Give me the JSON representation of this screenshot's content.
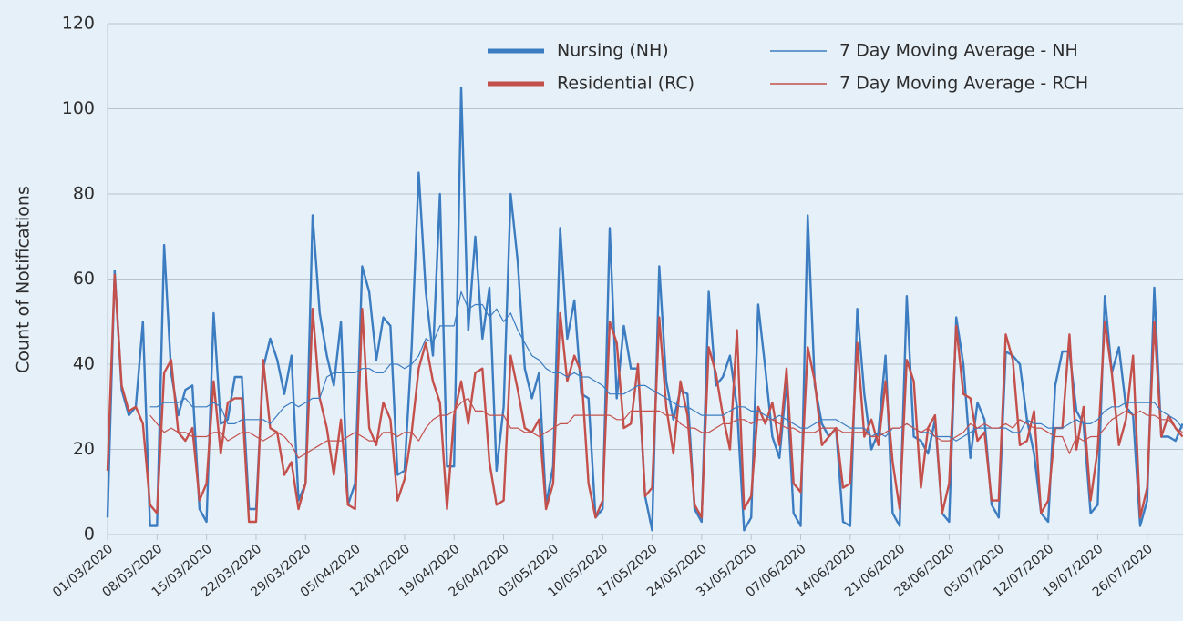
{
  "chart_data": {
    "type": "line",
    "y_label": "Count of Notifications",
    "categories": [
      "01/03/2020",
      null,
      null,
      null,
      null,
      null,
      null,
      "08/03/2020",
      null,
      null,
      null,
      null,
      null,
      null,
      "15/03/2020",
      null,
      null,
      null,
      null,
      null,
      null,
      "22/03/2020",
      null,
      null,
      null,
      null,
      null,
      null,
      "29/03/2020",
      null,
      null,
      null,
      null,
      null,
      null,
      "05/04/2020",
      null,
      null,
      null,
      null,
      null,
      null,
      "12/04/2020",
      null,
      null,
      null,
      null,
      null,
      null,
      "19/04/2020",
      null,
      null,
      null,
      null,
      null,
      null,
      "26/04/2020",
      null,
      null,
      null,
      null,
      null,
      null,
      "03/05/2020",
      null,
      null,
      null,
      null,
      null,
      null,
      "10/05/2020",
      null,
      null,
      null,
      null,
      null,
      null,
      "17/05/2020",
      null,
      null,
      null,
      null,
      null,
      null,
      "24/05/2020",
      null,
      null,
      null,
      null,
      null,
      null,
      "31/05/2020",
      null,
      null,
      null,
      null,
      null,
      null,
      "07/06/2020",
      null,
      null,
      null,
      null,
      null,
      null,
      "14/06/2020",
      null,
      null,
      null,
      null,
      null,
      null,
      "21/06/2020",
      null,
      null,
      null,
      null,
      null,
      null,
      "28/06/2020",
      null,
      null,
      null,
      null,
      null,
      null,
      "05/07/2020",
      null,
      null,
      null,
      null,
      null,
      null,
      "12/07/2020",
      null,
      null,
      null,
      null,
      null,
      null,
      "19/07/2020",
      null,
      null,
      null,
      null,
      null,
      null,
      "26/07/2020",
      null,
      null,
      null,
      null,
      null
    ],
    "ylim": [
      0,
      120
    ],
    "yticks": [
      0,
      20,
      40,
      60,
      80,
      100,
      120
    ],
    "grid": true,
    "legend": "top-right",
    "series": [
      {
        "name": "Nursing (NH)",
        "color": "#3c7cc0",
        "values": [
          4,
          62,
          34,
          28,
          30,
          50,
          2,
          2,
          68,
          38,
          28,
          34,
          35,
          6,
          3,
          52,
          26,
          27,
          37,
          37,
          6,
          6,
          39,
          46,
          41,
          33,
          42,
          8,
          12,
          75,
          52,
          42,
          35,
          50,
          7,
          12,
          63,
          57,
          41,
          51,
          49,
          14,
          15,
          44,
          85,
          57,
          42,
          80,
          16,
          16,
          105,
          48,
          70,
          46,
          58,
          15,
          30,
          80,
          64,
          39,
          32,
          38,
          7,
          16,
          72,
          46,
          55,
          33,
          32,
          4,
          6,
          72,
          32,
          49,
          39,
          39,
          9,
          1,
          63,
          36,
          27,
          34,
          33,
          6,
          3,
          57,
          35,
          37,
          42,
          30,
          1,
          4,
          54,
          39,
          23,
          18,
          36,
          5,
          2,
          75,
          35,
          26,
          23,
          25,
          3,
          2,
          53,
          33,
          20,
          24,
          42,
          5,
          2,
          56,
          23,
          22,
          19,
          27,
          5,
          3,
          51,
          40,
          18,
          31,
          27,
          7,
          4,
          43,
          42,
          40,
          27,
          19,
          5,
          3,
          35,
          43,
          43,
          29,
          26,
          5,
          7,
          56,
          38,
          44,
          30,
          28,
          2,
          8,
          58,
          23,
          23,
          22,
          26
        ]
      },
      {
        "name": "Residential (RC)",
        "color": "#c4504c",
        "values": [
          15,
          61,
          35,
          29,
          30,
          26,
          7,
          5,
          38,
          41,
          24,
          22,
          25,
          8,
          12,
          36,
          19,
          31,
          32,
          32,
          3,
          3,
          41,
          25,
          24,
          14,
          17,
          6,
          12,
          53,
          32,
          25,
          14,
          27,
          7,
          6,
          53,
          25,
          21,
          31,
          27,
          8,
          13,
          24,
          39,
          45,
          36,
          31,
          6,
          28,
          36,
          26,
          38,
          39,
          17,
          7,
          8,
          42,
          34,
          25,
          24,
          27,
          6,
          12,
          52,
          36,
          42,
          38,
          12,
          4,
          8,
          50,
          45,
          25,
          26,
          40,
          9,
          11,
          51,
          30,
          19,
          36,
          28,
          7,
          4,
          44,
          38,
          28,
          20,
          48,
          6,
          9,
          30,
          26,
          31,
          21,
          39,
          12,
          10,
          44,
          36,
          21,
          23,
          25,
          11,
          12,
          45,
          23,
          27,
          21,
          36,
          17,
          6,
          41,
          36,
          11,
          25,
          28,
          5,
          12,
          49,
          33,
          32,
          22,
          24,
          8,
          8,
          47,
          41,
          21,
          22,
          29,
          5,
          8,
          25,
          25,
          47,
          20,
          30,
          8,
          20,
          50,
          38,
          21,
          27,
          42,
          4,
          11,
          50,
          23,
          28,
          25,
          23
        ]
      },
      {
        "name": "7 Day Moving Average - NH",
        "color": "#3c7cc0",
        "values": [
          null,
          null,
          null,
          null,
          null,
          null,
          30,
          30,
          31,
          31,
          31,
          32,
          30,
          30,
          30,
          31,
          30,
          26,
          26,
          27,
          27,
          27,
          27,
          26,
          28,
          30,
          31,
          30,
          31,
          32,
          32,
          37,
          38,
          38,
          38,
          38,
          39,
          39,
          38,
          38,
          40,
          40,
          39,
          40,
          42,
          46,
          45,
          49,
          49,
          49,
          57,
          53,
          54,
          54,
          51,
          53,
          50,
          52,
          48,
          45,
          42,
          41,
          39,
          38,
          38,
          37,
          38,
          37,
          37,
          36,
          35,
          33,
          33,
          33,
          34,
          35,
          35,
          34,
          33,
          32,
          31,
          30,
          30,
          29,
          28,
          28,
          28,
          28,
          29,
          30,
          30,
          29,
          29,
          28,
          27,
          28,
          27,
          26,
          25,
          25,
          26,
          27,
          27,
          27,
          26,
          25,
          25,
          25,
          23,
          24,
          23,
          25,
          25,
          26,
          25,
          24,
          24,
          23,
          23,
          23,
          22,
          23,
          24,
          25,
          25,
          25,
          25,
          25,
          24,
          24,
          27,
          26,
          26,
          25,
          25,
          25,
          26,
          27,
          26,
          26,
          27,
          29,
          30,
          30,
          31,
          31,
          31,
          31,
          31,
          29,
          28,
          27,
          25
        ]
      },
      {
        "name": "7 Day Moving Average - RCH",
        "color": "#c4504c",
        "values": [
          null,
          null,
          null,
          null,
          null,
          null,
          28,
          26,
          24,
          25,
          24,
          24,
          23,
          23,
          23,
          24,
          24,
          22,
          23,
          24,
          24,
          23,
          22,
          23,
          24,
          23,
          21,
          18,
          19,
          20,
          21,
          22,
          22,
          22,
          23,
          24,
          23,
          22,
          22,
          24,
          24,
          23,
          24,
          24,
          22,
          25,
          27,
          28,
          28,
          29,
          31,
          32,
          29,
          29,
          28,
          28,
          28,
          25,
          25,
          24,
          24,
          23,
          24,
          25,
          26,
          26,
          28,
          28,
          28,
          28,
          28,
          28,
          27,
          27,
          29,
          29,
          29,
          29,
          29,
          28,
          28,
          26,
          25,
          25,
          24,
          24,
          25,
          26,
          26,
          27,
          27,
          26,
          27,
          27,
          27,
          26,
          25,
          25,
          24,
          24,
          24,
          25,
          25,
          25,
          24,
          24,
          24,
          24,
          23,
          23,
          24,
          25,
          25,
          26,
          25,
          24,
          25,
          23,
          22,
          22,
          23,
          24,
          26,
          25,
          26,
          25,
          25,
          26,
          25,
          27,
          26,
          25,
          25,
          24,
          23,
          23,
          19,
          23,
          22,
          23,
          23,
          25,
          27,
          28,
          29,
          28,
          29,
          28,
          28,
          27,
          27,
          25,
          24
        ]
      }
    ]
  }
}
